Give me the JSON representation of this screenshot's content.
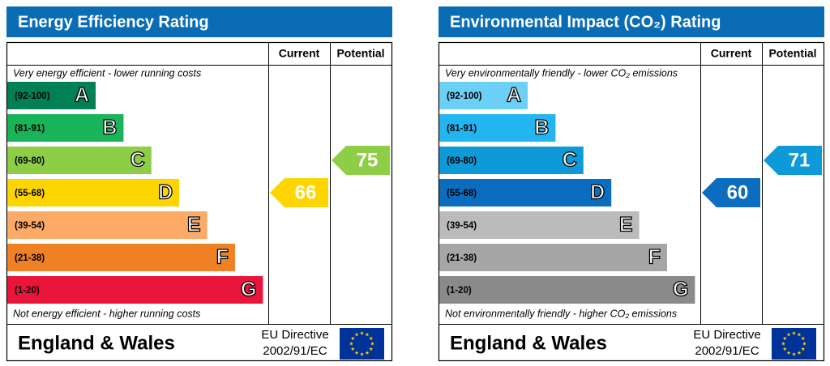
{
  "panels": [
    {
      "title": "Energy Efficiency Rating",
      "header": {
        "current": "Current",
        "potential": "Potential"
      },
      "top_note": "Very energy efficient - lower running costs",
      "bottom_note": "Not energy efficient - higher running costs",
      "bands": [
        {
          "range": "(92-100)",
          "letter": "A",
          "color": "#008054"
        },
        {
          "range": "(81-91)",
          "letter": "B",
          "color": "#19b459"
        },
        {
          "range": "(69-80)",
          "letter": "C",
          "color": "#8dce46"
        },
        {
          "range": "(55-68)",
          "letter": "D",
          "color": "#ffd500"
        },
        {
          "range": "(39-54)",
          "letter": "E",
          "color": "#fcaa65"
        },
        {
          "range": "(21-38)",
          "letter": "F",
          "color": "#ef8023"
        },
        {
          "range": "(1-20)",
          "letter": "G",
          "color": "#e9153b"
        }
      ],
      "current": {
        "value": 66,
        "color": "#ffd500"
      },
      "potential": {
        "value": 75,
        "color": "#8dce46"
      },
      "footer": {
        "region": "England & Wales",
        "directive": [
          "EU Directive",
          "2002/91/EC"
        ]
      }
    },
    {
      "title": "Environmental Impact (CO₂) Rating",
      "header": {
        "current": "Current",
        "potential": "Potential"
      },
      "top_note": "Very environmentally friendly - lower CO₂ emissions",
      "bottom_note": "Not environmentally friendly - higher CO₂ emissions",
      "bands": [
        {
          "range": "(92-100)",
          "letter": "A",
          "color": "#6ccff6"
        },
        {
          "range": "(81-91)",
          "letter": "B",
          "color": "#22b5f0"
        },
        {
          "range": "(69-80)",
          "letter": "C",
          "color": "#0e9ad8"
        },
        {
          "range": "(55-68)",
          "letter": "D",
          "color": "#0a6dbf"
        },
        {
          "range": "(39-54)",
          "letter": "E",
          "color": "#bbbbbb"
        },
        {
          "range": "(21-38)",
          "letter": "F",
          "color": "#a6a6a6"
        },
        {
          "range": "(1-20)",
          "letter": "G",
          "color": "#8a8a8a"
        }
      ],
      "current": {
        "value": 60,
        "color": "#0a6dbf"
      },
      "potential": {
        "value": 71,
        "color": "#0e9ad8"
      },
      "footer": {
        "region": "England & Wales",
        "directive": [
          "EU Directive",
          "2002/91/EC"
        ]
      }
    }
  ]
}
